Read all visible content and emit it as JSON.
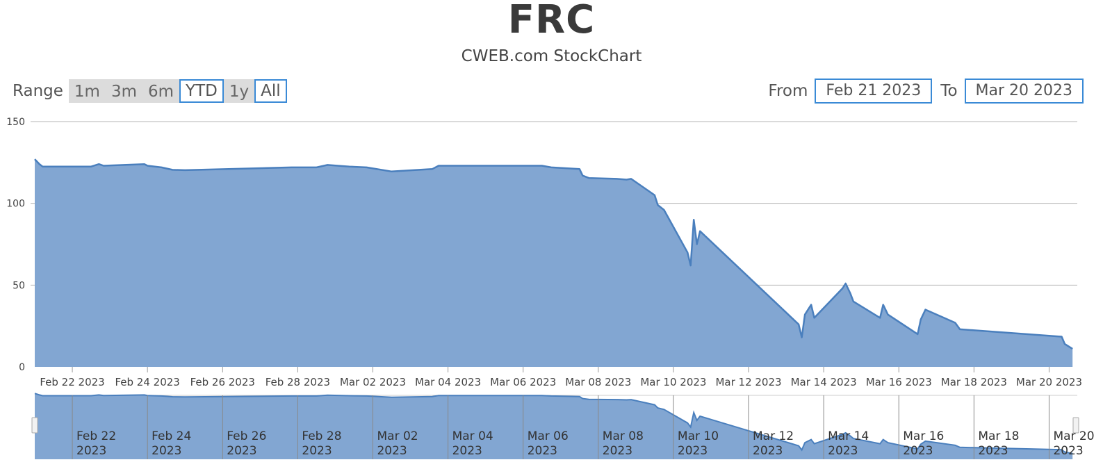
{
  "header": {
    "title": "FRC",
    "subtitle": "CWEB.com StockChart"
  },
  "range_selector": {
    "label": "Range",
    "buttons": [
      {
        "label": "1m",
        "active": false
      },
      {
        "label": "3m",
        "active": false
      },
      {
        "label": "6m",
        "active": false
      },
      {
        "label": "YTD",
        "active": true
      },
      {
        "label": "1y",
        "active": false
      },
      {
        "label": "All",
        "active": true
      }
    ]
  },
  "date_range": {
    "from_label": "From",
    "from_value": "Feb 21 2023",
    "to_label": "To",
    "to_value": "Mar 20 2023"
  },
  "colors": {
    "series_line": "#4a7fbd",
    "series_fill": "#82a6d2",
    "grid": "#b5b5b5",
    "accent": "#3a8ad6"
  },
  "chart_data": {
    "type": "area",
    "title": "FRC",
    "subtitle": "CWEB.com StockChart",
    "xlabel": "",
    "ylabel": "",
    "ylim": [
      0,
      150
    ],
    "y_ticks": [
      0,
      50,
      100,
      150
    ],
    "xlim": [
      "2023-02-21",
      "2023-03-20"
    ],
    "x_ticks": [
      "Feb 22 2023",
      "Feb 24 2023",
      "Feb 26 2023",
      "Feb 28 2023",
      "Mar 02 2023",
      "Mar 04 2023",
      "Mar 06 2023",
      "Mar 08 2023",
      "Mar 10 2023",
      "Mar 12 2023",
      "Mar 14 2023",
      "Mar 16 2023",
      "Mar 18 2023",
      "Mar 20 2023"
    ],
    "navigator_ticks": [
      [
        "Feb 22",
        "2023"
      ],
      [
        "Feb 24",
        "2023"
      ],
      [
        "Feb 26",
        "2023"
      ],
      [
        "Feb 28",
        "2023"
      ],
      [
        "Mar 02",
        "2023"
      ],
      [
        "Mar 04",
        "2023"
      ],
      [
        "Mar 06",
        "2023"
      ],
      [
        "Mar 08",
        "2023"
      ],
      [
        "Mar 10",
        "2023"
      ],
      [
        "Mar 12",
        "2023"
      ],
      [
        "Mar 14",
        "2023"
      ],
      [
        "Mar 16",
        "2023"
      ],
      [
        "Mar 18",
        "2023"
      ],
      [
        "Mar 20",
        "2023"
      ]
    ],
    "grid": true,
    "series": [
      {
        "points": [
          [
            "2023-02-21 00:00",
            127
          ],
          [
            "2023-02-21 03:00",
            124
          ],
          [
            "2023-02-21 05:00",
            122.5
          ],
          [
            "2023-02-22 12:00",
            122.5
          ],
          [
            "2023-02-22 17:00",
            124
          ],
          [
            "2023-02-22 20:00",
            123
          ],
          [
            "2023-02-23 22:00",
            124
          ],
          [
            "2023-02-24 00:00",
            123
          ],
          [
            "2023-02-24 09:00",
            122
          ],
          [
            "2023-02-24 16:00",
            120.5
          ],
          [
            "2023-02-25 00:00",
            120.3
          ],
          [
            "2023-02-27 20:00",
            122
          ],
          [
            "2023-02-28 12:00",
            122
          ],
          [
            "2023-02-28 19:00",
            123.5
          ],
          [
            "2023-03-01 09:00",
            122.5
          ],
          [
            "2023-03-01 20:00",
            122
          ],
          [
            "2023-03-02 12:00",
            119.5
          ],
          [
            "2023-03-03 14:00",
            121
          ],
          [
            "2023-03-03 18:00",
            123
          ],
          [
            "2023-03-06 12:00",
            123
          ],
          [
            "2023-03-06 18:00",
            122
          ],
          [
            "2023-03-07 12:00",
            121
          ],
          [
            "2023-03-07 14:00",
            117
          ],
          [
            "2023-03-07 18:00",
            115.5
          ],
          [
            "2023-03-08 12:00",
            115
          ],
          [
            "2023-03-08 18:00",
            114.5
          ],
          [
            "2023-03-08 21:00",
            115
          ],
          [
            "2023-03-09 12:00",
            105
          ],
          [
            "2023-03-09 14:00",
            99
          ],
          [
            "2023-03-09 18:00",
            96
          ],
          [
            "2023-03-10 09:00",
            70
          ],
          [
            "2023-03-10 11:00",
            62
          ],
          [
            "2023-03-10 13:00",
            90
          ],
          [
            "2023-03-10 15:00",
            75
          ],
          [
            "2023-03-10 17:00",
            83
          ],
          [
            "2023-03-13 08:00",
            26
          ],
          [
            "2023-03-13 10:00",
            18
          ],
          [
            "2023-03-13 12:00",
            32
          ],
          [
            "2023-03-13 16:00",
            38
          ],
          [
            "2023-03-13 18:00",
            30
          ],
          [
            "2023-03-14 12:00",
            48
          ],
          [
            "2023-03-14 14:00",
            51
          ],
          [
            "2023-03-14 17:00",
            45
          ],
          [
            "2023-03-14 19:00",
            40
          ],
          [
            "2023-03-15 12:00",
            30
          ],
          [
            "2023-03-15 14:00",
            38
          ],
          [
            "2023-03-15 17:00",
            32
          ],
          [
            "2023-03-16 12:00",
            20
          ],
          [
            "2023-03-16 14:00",
            29
          ],
          [
            "2023-03-16 17:00",
            35
          ],
          [
            "2023-03-17 12:00",
            27
          ],
          [
            "2023-03-17 15:00",
            23
          ],
          [
            "2023-03-20 08:00",
            18.5
          ],
          [
            "2023-03-20 10:00",
            14
          ],
          [
            "2023-03-20 15:00",
            11
          ]
        ]
      }
    ]
  }
}
